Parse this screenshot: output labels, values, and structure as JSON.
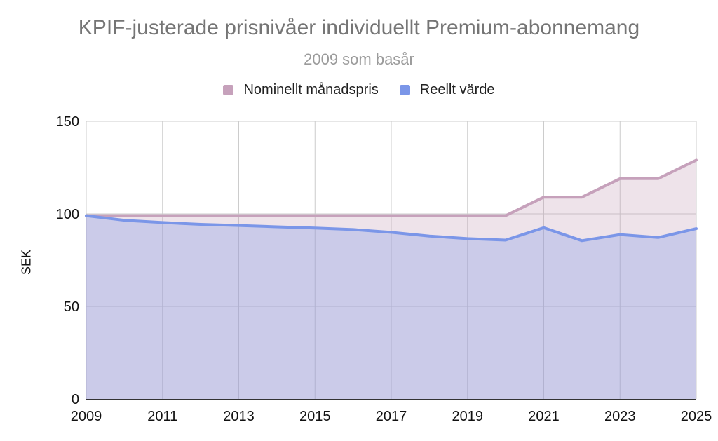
{
  "title": "KPIF-justerade prisnivåer individuellt Premium-abonnemang",
  "subtitle": "2009 som basår",
  "chart_data": {
    "type": "area",
    "x": [
      2009,
      2010,
      2011,
      2012,
      2013,
      2014,
      2015,
      2016,
      2017,
      2018,
      2019,
      2020,
      2021,
      2022,
      2023,
      2024,
      2025
    ],
    "series": [
      {
        "name": "Nominellt månadspris",
        "color": "#c6a1bb",
        "values": [
          99,
          99,
          99,
          99,
          99,
          99,
          99,
          99,
          99,
          99,
          99,
          99,
          109,
          109,
          119,
          119,
          129
        ]
      },
      {
        "name": "Reellt värde",
        "color": "#7b96e8",
        "values": [
          99,
          96.5,
          95.3,
          94.3,
          93.7,
          93,
          92.3,
          91.5,
          90,
          88,
          86.6,
          85.8,
          92.5,
          85.5,
          88.8,
          87.2,
          92
        ]
      }
    ],
    "xlabel": "",
    "ylabel": "SEK",
    "ylim": [
      0,
      150
    ],
    "yticks": [
      0,
      50,
      100,
      150
    ],
    "xticks": [
      2009,
      2011,
      2013,
      2015,
      2017,
      2019,
      2021,
      2023,
      2025
    ],
    "grid": true,
    "legend_position": "top",
    "fill_opacity": 0.3,
    "line_width": 4
  },
  "colors": {
    "title": "#757575",
    "subtitle": "#9b9b9b",
    "grid": "#cccccc",
    "axis": "#333333",
    "tick_label": "#111111"
  }
}
